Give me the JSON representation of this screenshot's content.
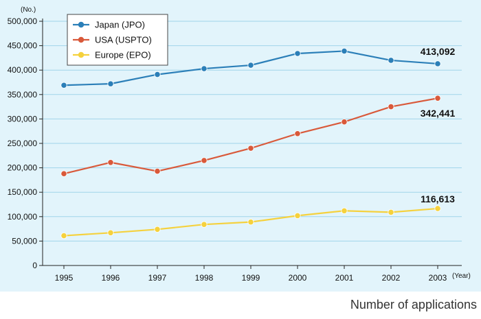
{
  "caption": "Number of applications",
  "chart_data": {
    "type": "line",
    "title": "",
    "xlabel": "",
    "ylabel": "",
    "y_unit": "(No.)",
    "x_unit": "(Year)",
    "categories": [
      "1995",
      "1996",
      "1997",
      "1998",
      "1999",
      "2000",
      "2001",
      "2002",
      "2003"
    ],
    "ylim": [
      0,
      500000
    ],
    "yticks": [
      0,
      50000,
      100000,
      150000,
      200000,
      250000,
      300000,
      350000,
      400000,
      450000,
      500000
    ],
    "ytick_labels": [
      "0",
      "50,000",
      "100,000",
      "150,000",
      "200,000",
      "250,000",
      "300,000",
      "350,000",
      "400,000",
      "450,000",
      "500,000"
    ],
    "grid": true,
    "legend_position": "top-left",
    "series": [
      {
        "name": "Japan (JPO)",
        "color": "#2b7fb8",
        "values": [
          369000,
          372000,
          391000,
          403000,
          410000,
          434000,
          439000,
          420000,
          413092
        ],
        "end_label": "413,092"
      },
      {
        "name": "USA (USPTO)",
        "color": "#d9593a",
        "values": [
          188000,
          211000,
          193000,
          215000,
          240000,
          270000,
          294000,
          325000,
          342441
        ],
        "end_label": "342,441"
      },
      {
        "name": "Europe (EPO)",
        "color": "#f5d13d",
        "values": [
          61000,
          67000,
          74000,
          84000,
          89000,
          102000,
          112000,
          109000,
          116613
        ],
        "end_label": "116,613"
      }
    ]
  }
}
